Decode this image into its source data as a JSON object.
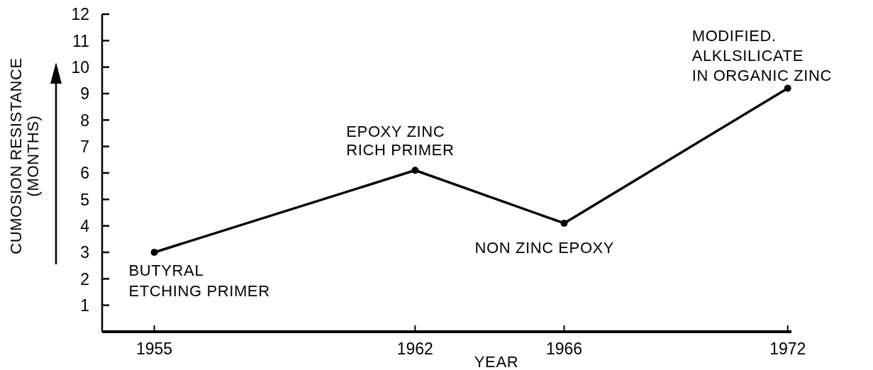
{
  "chart_data": {
    "type": "line",
    "xlabel": "YEAR",
    "ylabel": "CUMOSION RESISTANCE\n(MONTHS)",
    "x": [
      1955,
      1962,
      1966,
      1972
    ],
    "values": [
      3,
      6.1,
      4.1,
      9.2
    ],
    "color": "#000000",
    "marker": "circle",
    "line_style": "solid",
    "xlim": [
      1953.6,
      1972.1
    ],
    "xticks": [
      1955,
      1962,
      1966,
      1972
    ],
    "ylim": [
      0,
      12
    ],
    "yticks": [
      1,
      2,
      3,
      4,
      5,
      6,
      7,
      8,
      9,
      10,
      11,
      12
    ],
    "annotations": [
      {
        "text": "BUTYRAL\nETCHING PRIMER",
        "x": 1955,
        "y": 3
      },
      {
        "text": "EPOXY ZINC\nRICH PRIMER",
        "x": 1962,
        "y": 6.1
      },
      {
        "text": "NON ZINC EPOXY",
        "x": 1966,
        "y": 4.1
      },
      {
        "text": "MODIFIED.\nALKLSILICATE\nIN ORGANIC ZINC",
        "x": 1972,
        "y": 9.2
      }
    ]
  }
}
